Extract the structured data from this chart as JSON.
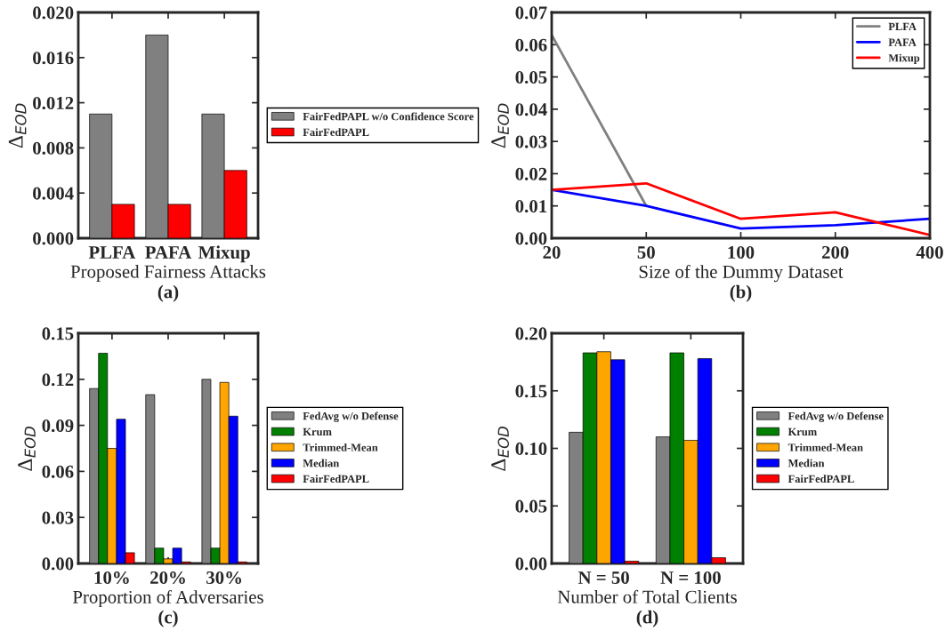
{
  "chart_data": [
    {
      "type": "bar",
      "xlabel": "Proposed Fairness Attacks",
      "ylabel": "Δ$_{EOD}$",
      "categories": [
        "PLFA",
        "PAFA",
        "Mixup"
      ],
      "series": [
        {
          "name": "FairFedPAPL w/o Confidence Score",
          "color": "#808080",
          "values": [
            0.011,
            0.018,
            0.011
          ]
        },
        {
          "name": "FairFedPAPL",
          "color": "#ff0000",
          "values": [
            0.003,
            0.003,
            0.006
          ]
        }
      ],
      "ylim": [
        0,
        0.02
      ],
      "yticks": [
        {
          "value": 0,
          "label": "0.000"
        },
        {
          "value": 0.004,
          "label": "0.004"
        },
        {
          "value": 0.008,
          "label": "0.008"
        },
        {
          "value": 0.012,
          "label": "0.012"
        },
        {
          "value": 0.016,
          "label": "0.016"
        },
        {
          "value": 0.02,
          "label": "0.020"
        }
      ],
      "legend": "right",
      "annotations": [
        "(a)"
      ]
    },
    {
      "type": "line",
      "xlabel": "Size of the Dummy Dataset",
      "ylabel": "Δ$_{EOD}$",
      "categories": [
        "20",
        "50",
        "100",
        "200",
        "400"
      ],
      "series": [
        {
          "name": "PLFA",
          "color": "#808080",
          "values": [
            0.063,
            0.01,
            null,
            null,
            null
          ]
        },
        {
          "name": "PAFA",
          "color": "#0000ff",
          "values": [
            0.015,
            0.01,
            0.003,
            0.004,
            0.006
          ]
        },
        {
          "name": "Mixup",
          "color": "#ff0000",
          "values": [
            0.015,
            0.017,
            0.006,
            0.008,
            0.001
          ]
        }
      ],
      "ylim": [
        0,
        0.07
      ],
      "yticks": [
        {
          "value": 0,
          "label": "0.00"
        },
        {
          "value": 0.01,
          "label": "0.01"
        },
        {
          "value": 0.02,
          "label": "0.02"
        },
        {
          "value": 0.03,
          "label": "0.03"
        },
        {
          "value": 0.04,
          "label": "0.04"
        },
        {
          "value": 0.05,
          "label": "0.05"
        },
        {
          "value": 0.06,
          "label": "0.06"
        },
        {
          "value": 0.07,
          "label": "0.07"
        }
      ],
      "legend": "top right",
      "line_style": "solid",
      "marker": "none",
      "annotations": [
        "(b)"
      ]
    },
    {
      "type": "bar",
      "xlabel": "Proportion of Adversaries",
      "ylabel": "Δ$_{EOD}$",
      "categories": [
        "10%",
        "20%",
        "30%"
      ],
      "series": [
        {
          "name": "FedAvg w/o Defense",
          "color": "#808080",
          "values": [
            0.114,
            0.11,
            0.12
          ]
        },
        {
          "name": "Krum",
          "color": "#008000",
          "values": [
            0.137,
            0.01,
            0.01
          ]
        },
        {
          "name": "Trimmed-Mean",
          "color": "#ffa500",
          "values": [
            0.075,
            0.003,
            0.118
          ]
        },
        {
          "name": "Median",
          "color": "#0000ff",
          "values": [
            0.094,
            0.01,
            0.096
          ]
        },
        {
          "name": "FairFedPAPL",
          "color": "#ff0000",
          "values": [
            0.007,
            0.001,
            0.001
          ]
        }
      ],
      "ylim": [
        0,
        0.15
      ],
      "yticks": [
        {
          "value": 0,
          "label": "0.00"
        },
        {
          "value": 0.03,
          "label": "0.03"
        },
        {
          "value": 0.06,
          "label": "0.06"
        },
        {
          "value": 0.09,
          "label": "0.09"
        },
        {
          "value": 0.12,
          "label": "0.12"
        },
        {
          "value": 0.15,
          "label": "0.15"
        }
      ],
      "legend": "right",
      "annotations": [
        "(c)"
      ]
    },
    {
      "type": "bar",
      "xlabel": "Number of Total Clients",
      "ylabel": "Δ$_{EOD}$",
      "categories": [
        "N = 50",
        "N = 100"
      ],
      "series": [
        {
          "name": "FedAvg w/o Defense",
          "color": "#808080",
          "values": [
            0.114,
            0.11
          ]
        },
        {
          "name": "Krum",
          "color": "#008000",
          "values": [
            0.183,
            0.183
          ]
        },
        {
          "name": "Trimmed-Mean",
          "color": "#ffa500",
          "values": [
            0.184,
            0.107
          ]
        },
        {
          "name": "Median",
          "color": "#0000ff",
          "values": [
            0.177,
            0.178
          ]
        },
        {
          "name": "FairFedPAPL",
          "color": "#ff0000",
          "values": [
            0.002,
            0.005
          ]
        }
      ],
      "ylim": [
        0,
        0.2
      ],
      "yticks": [
        {
          "value": 0,
          "label": "0.00"
        },
        {
          "value": 0.05,
          "label": "0.05"
        },
        {
          "value": 0.1,
          "label": "0.10"
        },
        {
          "value": 0.15,
          "label": "0.15"
        },
        {
          "value": 0.2,
          "label": "0.20"
        }
      ],
      "legend": "right",
      "annotations": [
        "(d)"
      ]
    }
  ]
}
